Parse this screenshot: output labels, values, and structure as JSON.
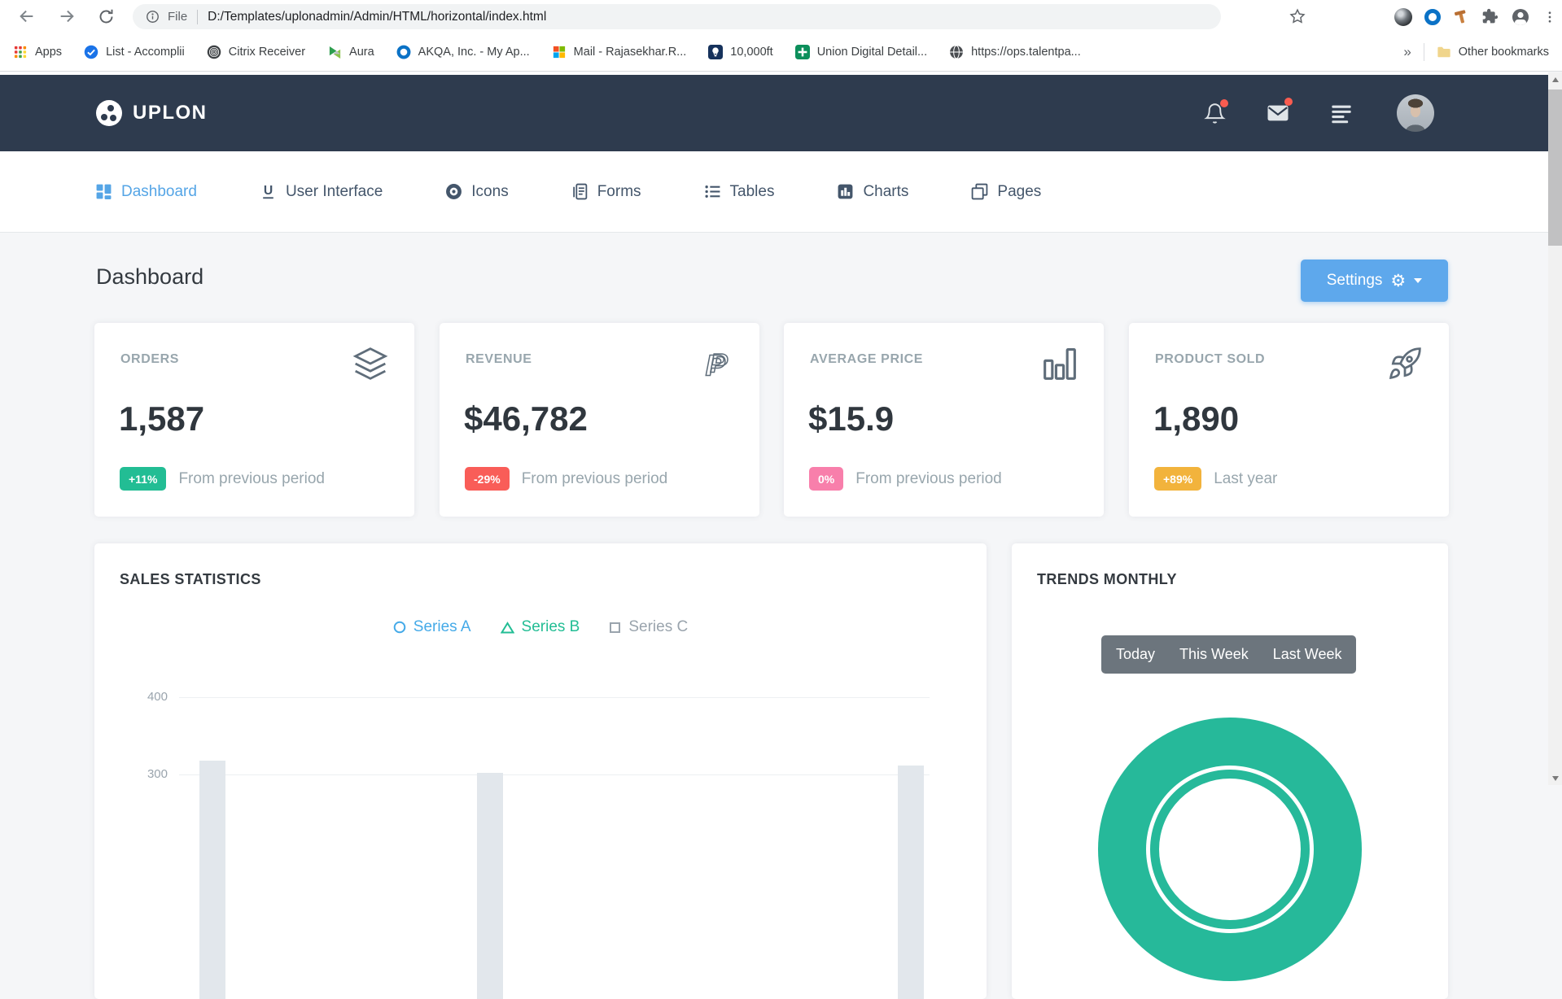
{
  "browser": {
    "toolbar": {
      "scheme_label": "File",
      "url": "D:/Templates/uplonadmin/Admin/HTML/horizontal/index.html"
    },
    "bookmarks_bar": {
      "items": [
        {
          "label": "Apps",
          "icon": "apps-grid-icon"
        },
        {
          "label": "List - Accomplii",
          "icon": "check-circle-icon"
        },
        {
          "label": "Citrix Receiver",
          "icon": "citrix-spiral-icon"
        },
        {
          "label": "Aura",
          "icon": "aura-icon"
        },
        {
          "label": "AKQA, Inc. - My Ap...",
          "icon": "blue-ring-icon"
        },
        {
          "label": "Mail - Rajasekhar.R...",
          "icon": "microsoft-icon"
        },
        {
          "label": "10,000ft",
          "icon": "balloon-icon"
        },
        {
          "label": "Union Digital Detail...",
          "icon": "spreadsheet-icon"
        },
        {
          "label": "https://ops.talentpa...",
          "icon": "globe-icon"
        }
      ],
      "overflow_indicator": "»",
      "other_bookmarks_label": "Other bookmarks"
    }
  },
  "navbar": {
    "brand": "UPLON",
    "bell_has_badge": true,
    "mail_has_badge": true
  },
  "menu": {
    "items": [
      {
        "label": "Dashboard",
        "icon": "grid-icon",
        "active": true
      },
      {
        "label": "User Interface",
        "icon": "u-underline-icon",
        "active": false
      },
      {
        "label": "Icons",
        "icon": "disc-icon",
        "active": false
      },
      {
        "label": "Forms",
        "icon": "journal-icon",
        "active": false
      },
      {
        "label": "Tables",
        "icon": "list-icon",
        "active": false
      },
      {
        "label": "Charts",
        "icon": "bar-chart-square-icon",
        "active": false
      },
      {
        "label": "Pages",
        "icon": "stacked-pages-icon",
        "active": false
      }
    ]
  },
  "page": {
    "title": "Dashboard",
    "settings_button_label": "Settings"
  },
  "stats": [
    {
      "title": "ORDERS",
      "icon": "layers-icon",
      "value": "1,587",
      "badge": "+11%",
      "badge_color": "#22bd94",
      "note": "From previous period"
    },
    {
      "title": "REVENUE",
      "icon": "paypal-icon",
      "value": "$46,782",
      "badge": "-29%",
      "badge_color": "#f95d58",
      "note": "From previous period"
    },
    {
      "title": "AVERAGE PRICE",
      "icon": "bars-icon",
      "value": "$15.9",
      "badge": "0%",
      "badge_color": "#f87fab",
      "note": "From previous period"
    },
    {
      "title": "PRODUCT SOLD",
      "icon": "rocket-icon",
      "value": "1,890",
      "badge": "+89%",
      "badge_color": "#f2b33c",
      "note": "Last year"
    }
  ],
  "chart_data": [
    {
      "type": "bar",
      "title": "SALES STATISTICS",
      "legend": [
        {
          "label": "Series A",
          "marker": "circle",
          "color": "#45aae8"
        },
        {
          "label": "Series B",
          "marker": "triangle",
          "color": "#22bd94"
        },
        {
          "label": "Series C",
          "marker": "square",
          "color": "#9aa4ad"
        }
      ],
      "y_ticks_visible": [
        400,
        300
      ],
      "bar_color": "#e2e7ec",
      "visible_bars": [
        {
          "x_fraction": 0.044,
          "value": 318
        },
        {
          "x_fraction": 0.414,
          "value": 302
        },
        {
          "x_fraction": 0.975,
          "value": 312
        }
      ],
      "note": "lower portion of chart cut off by viewport edge"
    },
    {
      "type": "donut",
      "title": "TRENDS MONTHLY",
      "period_buttons": [
        "Today",
        "This Week",
        "Last Week"
      ],
      "ring_color": "#26b99a",
      "note": "only top arc of donut visible at viewport edge"
    }
  ],
  "colors": {
    "navbar_bg": "#2e3b4e",
    "menu_active": "#55a5e6",
    "settings_button_bg": "#5ea8ec",
    "page_bg": "#f5f6f8",
    "card_bg": "#ffffff"
  }
}
